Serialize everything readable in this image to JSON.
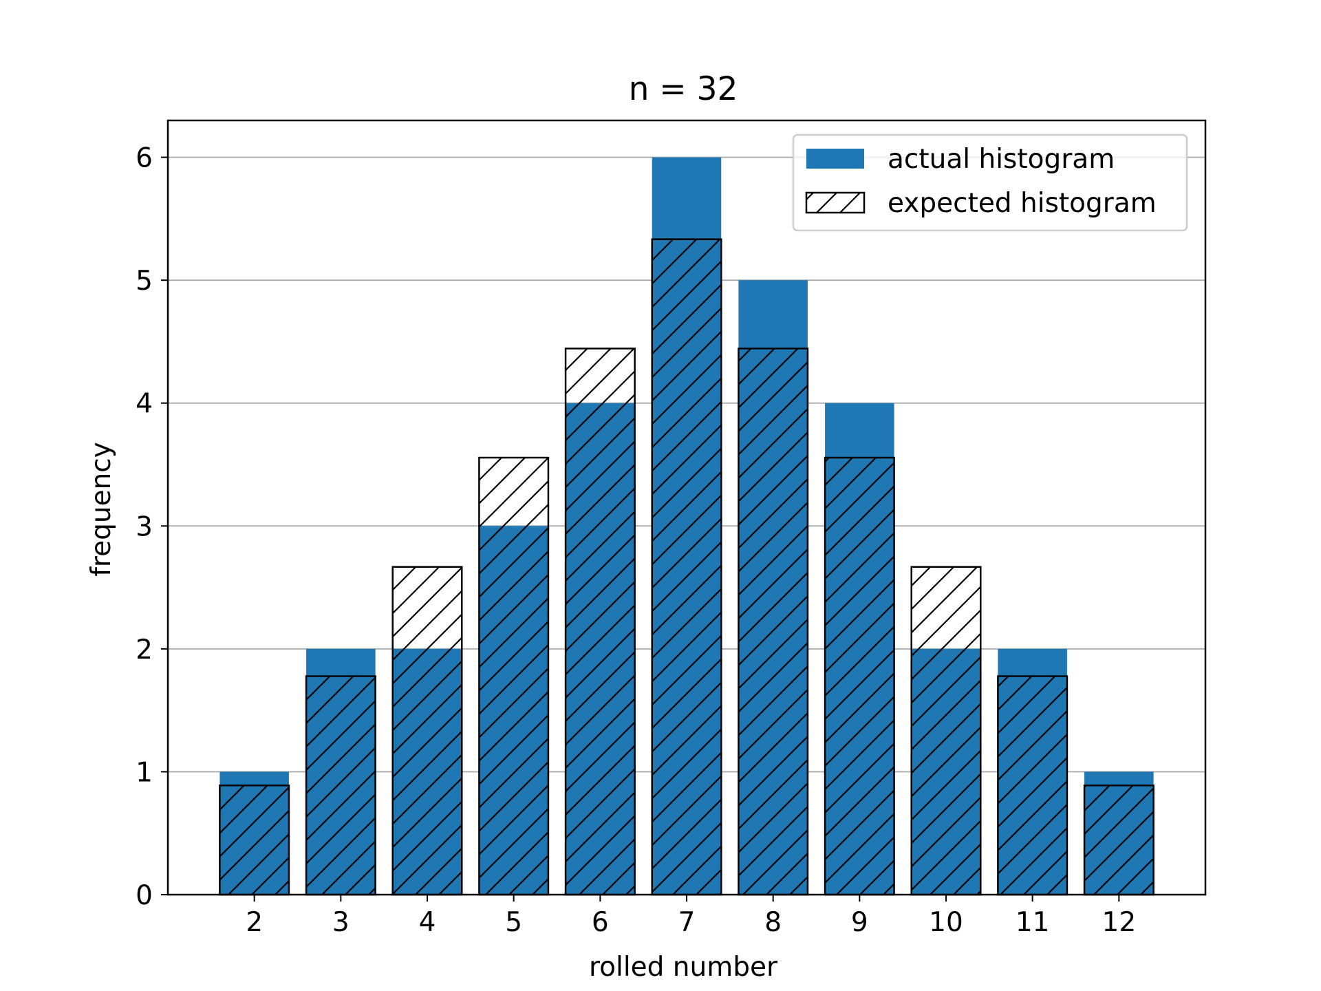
{
  "chart_data": {
    "type": "bar",
    "title": "n = 32",
    "xlabel": "rolled number",
    "ylabel": "frequency",
    "categories": [
      2,
      3,
      4,
      5,
      6,
      7,
      8,
      9,
      10,
      11,
      12
    ],
    "series": [
      {
        "name": "actual histogram",
        "values": [
          1,
          2,
          2,
          3,
          4,
          6,
          5,
          4,
          2,
          2,
          1
        ],
        "color": "#1f77b4",
        "style": "filled"
      },
      {
        "name": "expected histogram",
        "values": [
          0.889,
          1.778,
          2.667,
          3.556,
          4.444,
          5.333,
          4.444,
          3.556,
          2.667,
          1.778,
          0.889
        ],
        "color": "#000000",
        "style": "hatched-outline"
      }
    ],
    "xlim": [
      1,
      13
    ],
    "ylim": [
      0,
      6.3
    ],
    "yticks": [
      0,
      1,
      2,
      3,
      4,
      5,
      6
    ],
    "grid": "y",
    "legend": "top-right"
  }
}
